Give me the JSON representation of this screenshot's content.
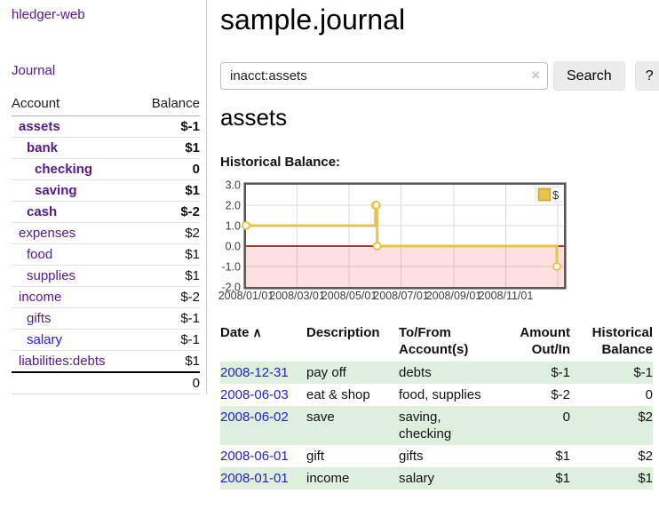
{
  "app": {
    "brand": "hledger-web"
  },
  "sidebar": {
    "nav_journal": "Journal",
    "accounts_table": {
      "headers": {
        "account": "Account",
        "balance": "Balance"
      },
      "rows": [
        {
          "name": "assets",
          "level": 1,
          "bold": true,
          "balance": "$-1",
          "balance_style": "neg",
          "name_style": "visited"
        },
        {
          "name": "bank",
          "level": 2,
          "bold": true,
          "balance": "$1",
          "balance_style": "pos",
          "name_style": "visited"
        },
        {
          "name": "checking",
          "level": 3,
          "bold": true,
          "balance": "0",
          "balance_style": "pos",
          "name_style": "visited"
        },
        {
          "name": "saving",
          "level": 3,
          "bold": true,
          "balance": "$1",
          "balance_style": "pos",
          "name_style": "visited"
        },
        {
          "name": "cash",
          "level": 2,
          "bold": true,
          "balance": "$-2",
          "balance_style": "neg",
          "name_style": "visited"
        },
        {
          "name": "expenses",
          "level": 1,
          "bold": false,
          "balance": "$2",
          "balance_style": "pos",
          "name_style": "visited"
        },
        {
          "name": "food",
          "level": 2,
          "bold": false,
          "balance": "$1",
          "balance_style": "pos",
          "name_style": "visited"
        },
        {
          "name": "supplies",
          "level": 2,
          "bold": false,
          "balance": "$1",
          "balance_style": "pos",
          "name_style": "visited"
        },
        {
          "name": "income",
          "level": 1,
          "bold": false,
          "balance": "$-2",
          "balance_style": "neglite",
          "name_style": "visited"
        },
        {
          "name": "gifts",
          "level": 2,
          "bold": false,
          "balance": "$-1",
          "balance_style": "neglite",
          "name_style": "visited"
        },
        {
          "name": "salary",
          "level": 2,
          "bold": false,
          "balance": "$-1",
          "balance_style": "neglite",
          "name_style": "link"
        },
        {
          "name": "liabilities:debts",
          "level": 1,
          "bold": false,
          "balance": "$1",
          "balance_style": "pos",
          "name_style": "visited"
        }
      ],
      "total": "0"
    }
  },
  "header": {
    "title": "sample.journal"
  },
  "search": {
    "value": "inacct:assets",
    "clear_icon": "×",
    "button_label": "Search",
    "help_label": "?"
  },
  "account_page": {
    "heading": "assets",
    "chart_title": "Historical Balance:"
  },
  "chart_data": {
    "type": "line",
    "step": true,
    "title": "Historical Balance:",
    "series": [
      {
        "name": "$",
        "points": [
          [
            "2008/01/01",
            1
          ],
          [
            "2008/06/01",
            2
          ],
          [
            "2008/06/02",
            2
          ],
          [
            "2008/06/03",
            0
          ],
          [
            "2008/12/31",
            -1
          ]
        ]
      }
    ],
    "x_start": "2008/01/01",
    "x_grid_extra": "2009/01/01",
    "x_tick_labels": [
      "2008/01/01",
      "2008/03/01",
      "2008/05/01",
      "2008/07/01",
      "2008/09/01",
      "2008/11/01"
    ],
    "y_tick_labels": [
      "3.0",
      "2.0",
      "1.0",
      "0.0",
      "-1.0",
      "-2.0"
    ],
    "y_ticks": [
      3,
      2,
      1,
      0,
      -1,
      -2
    ],
    "ylim": [
      -2,
      3
    ],
    "grid": true,
    "legend": {
      "label": "$",
      "position": "top-right"
    },
    "colors": {
      "line": "#e9c347",
      "marker_fill": "#ffffff",
      "negative_fill": "rgba(255,0,0,0.12)",
      "zero_line": "#8b0000",
      "grid": "#d9d9d9",
      "border": "#545454",
      "legend_swatch": "#e9c347",
      "legend_swatch_border": "#c9a53b"
    }
  },
  "register": {
    "headers": [
      {
        "label": "Date",
        "sort_icon": "∧"
      },
      {
        "label": "Description"
      },
      {
        "label": "To/From Account(s)"
      },
      {
        "label": "Amount Out/In"
      },
      {
        "label": "Historical Balance"
      }
    ],
    "rows": [
      {
        "date": "2008-12-31",
        "description": "pay off",
        "accounts": "debts",
        "amount": "$-1",
        "amount_neg": true,
        "balance": "$-1",
        "balance_neg": true
      },
      {
        "date": "2008-06-03",
        "description": "eat & shop",
        "accounts": "food, supplies",
        "amount": "$-2",
        "amount_neg": true,
        "balance": "0",
        "balance_neg": false
      },
      {
        "date": "2008-06-02",
        "description": "save",
        "accounts": "saving, checking",
        "amount": "0",
        "amount_neg": false,
        "balance": "$2",
        "balance_neg": false
      },
      {
        "date": "2008-06-01",
        "description": "gift",
        "accounts": "gifts",
        "amount": "$1",
        "amount_neg": false,
        "balance": "$2",
        "balance_neg": false
      },
      {
        "date": "2008-01-01",
        "description": "income",
        "accounts": "salary",
        "amount": "$1",
        "amount_neg": false,
        "balance": "$1",
        "balance_neg": false
      }
    ]
  }
}
